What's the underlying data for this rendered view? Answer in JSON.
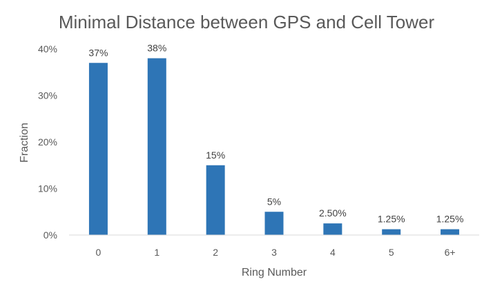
{
  "chart_data": {
    "type": "bar",
    "title": "Minimal Distance between GPS and Cell Tower",
    "xlabel": "Ring Number",
    "ylabel": "Fraction",
    "categories": [
      "0",
      "1",
      "2",
      "3",
      "4",
      "5",
      "6+"
    ],
    "values": [
      37,
      38,
      15,
      5,
      2.5,
      1.25,
      1.25
    ],
    "data_labels": [
      "37%",
      "38%",
      "15%",
      "5%",
      "2.50%",
      "1.25%",
      "1.25%"
    ],
    "ylim": [
      0,
      40
    ],
    "yticks": [
      0,
      10,
      20,
      30,
      40
    ],
    "ytick_labels": [
      "0%",
      "10%",
      "20%",
      "30%",
      "40%"
    ],
    "grid": false,
    "legend": "none",
    "bar_color": "#2E75B6",
    "axis_color": "#D9D9D9"
  }
}
